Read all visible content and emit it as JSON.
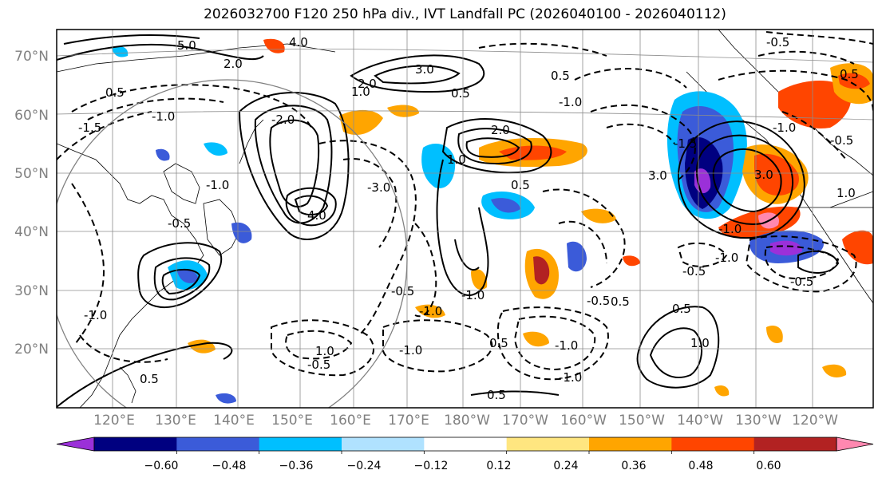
{
  "title": "2026032700 F120 250 hPa div., IVT Landfall PC (2026040100 - 2026040112)",
  "lat_labels": [
    "70°N",
    "60°N",
    "50°N",
    "40°N",
    "30°N",
    "20°N"
  ],
  "lon_labels": [
    "120°E",
    "130°E",
    "140°E",
    "150°E",
    "160°E",
    "170°E",
    "180°W",
    "170°W",
    "160°W",
    "150°W",
    "140°W",
    "130°W",
    "120°W"
  ],
  "colorbar": {
    "colors": [
      "#9b30d9",
      "#000080",
      "#3b5bd9",
      "#00bfff",
      "#b0e2ff",
      "#ffffff",
      "#ffe680",
      "#ffa500",
      "#ff4500",
      "#b22222",
      "#ff88b0"
    ],
    "tick_labels": [
      "−0.60",
      "−0.48",
      "−0.36",
      "−0.24",
      "−0.12",
      "0.12",
      "0.24",
      "0.36",
      "0.48",
      "0.60"
    ]
  },
  "contour_labels": [
    "0.5",
    "5.0",
    "2.0",
    "4.0",
    "1.0",
    "3.0",
    "0.5",
    "-1.0",
    "-1.5",
    "2.0",
    "-2.0",
    "-1.0",
    "-3.0",
    "-0.5",
    "4.0",
    "-0.5",
    "1.0",
    "0.5",
    "-1.0",
    "-0.5",
    "-1.0",
    "0.5",
    "-0.5",
    "0.5",
    "0.5",
    "-1.0",
    "-1.0",
    "0.5",
    "-1.0",
    "0.5",
    "-1.0",
    "-1.0",
    "1.0",
    "2.0",
    "3.0",
    "-1.0",
    "-0.5",
    "0.5",
    "-1.0",
    "-0.5",
    "1.0",
    "3.0",
    "1.0",
    "-0.5",
    "-1.0",
    "-1.5",
    "-0.5",
    "0.5"
  ]
}
